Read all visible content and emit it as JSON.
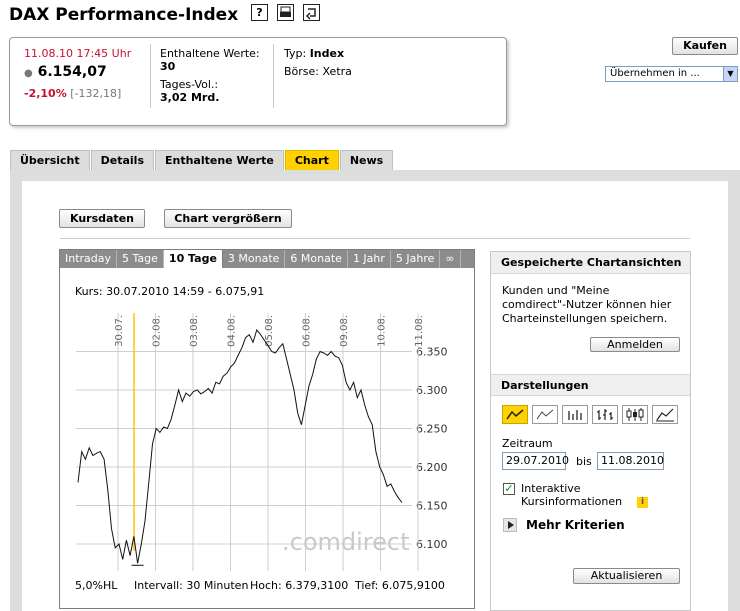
{
  "header": {
    "title": "DAX Performance-Index",
    "icons": [
      "help-icon",
      "print-icon",
      "refresh-icon"
    ]
  },
  "quote": {
    "datetime": "11.08.10   17:45 Uhr",
    "price": "6.154,07",
    "change_pct": "-2,10%",
    "change_abs": "[-132,18]",
    "constituents_label": "Enthaltene Werte:",
    "constituents_value": "30",
    "volume_label": "Tages-Vol.:",
    "volume_value": "3,02 Mrd.",
    "type_label": "Typ:",
    "type_value": "Index",
    "exchange_label": "Börse:",
    "exchange_value": "Xetra"
  },
  "actions": {
    "buy_label": "Kaufen",
    "take_over_select": "Übernehmen in ..."
  },
  "tabs": [
    {
      "label": "Übersicht",
      "active": false
    },
    {
      "label": "Details",
      "active": false
    },
    {
      "label": "Enthaltene Werte",
      "active": false
    },
    {
      "label": "Chart",
      "active": true
    },
    {
      "label": "News",
      "active": false
    }
  ],
  "toolbar": {
    "kursdaten_label": "Kursdaten",
    "enlarge_label": "Chart vergrößern"
  },
  "chart_tabs": [
    {
      "label": "Intraday",
      "active": false
    },
    {
      "label": "5 Tage",
      "active": false
    },
    {
      "label": "10 Tage",
      "active": true
    },
    {
      "label": "3 Monate",
      "active": false
    },
    {
      "label": "6 Monate",
      "active": false
    },
    {
      "label": "1 Jahr",
      "active": false
    },
    {
      "label": "5 Jahre",
      "active": false
    },
    {
      "label": "∞",
      "active": false
    }
  ],
  "chart_data": {
    "type": "line",
    "kurs_line": "Kurs: 30.07.2010 14:59 - 6.075,91",
    "date_labels": [
      "30.07.",
      "02.08.",
      "03.08.",
      "04.08.",
      "05.08.",
      "06.08.",
      "09.08.",
      "10.08.",
      "11.08."
    ],
    "y_ticks": [
      "6.350",
      "6.300",
      "6.250",
      "6.200",
      "6.150",
      "6.100"
    ],
    "ylim": [
      6065,
      6400
    ],
    "grid": true,
    "watermark": ".comdirect",
    "series": [
      {
        "values": [
          6180,
          6220,
          6210,
          6225,
          6215,
          6218,
          6220,
          6210,
          6170,
          6120,
          6095,
          6100,
          6080,
          6105,
          6085,
          6110,
          6075,
          6100,
          6130,
          6180,
          6230,
          6250,
          6245,
          6252,
          6250,
          6262,
          6280,
          6300,
          6285,
          6296,
          6292,
          6298,
          6300,
          6295,
          6298,
          6302,
          6296,
          6310,
          6308,
          6318,
          6322,
          6330,
          6335,
          6345,
          6355,
          6368,
          6372,
          6362,
          6378,
          6372,
          6365,
          6358,
          6350,
          6348,
          6355,
          6360,
          6340,
          6320,
          6300,
          6270,
          6255,
          6280,
          6305,
          6320,
          6340,
          6350,
          6348,
          6345,
          6350,
          6344,
          6342,
          6332,
          6310,
          6300,
          6310,
          6290,
          6300,
          6280,
          6265,
          6255,
          6220,
          6200,
          6190,
          6175,
          6178,
          6168,
          6160,
          6154
        ]
      }
    ],
    "footer_hl": "5,0%HL",
    "footer_interval": "Intervall: 30 Minuten",
    "footer_high": "Hoch: 6.379,3100",
    "footer_low": "Tief: 6.075,9100"
  },
  "sidebar": {
    "saved_title": "Gespeicherte Chartansichten",
    "saved_text": [
      "Kunden und \"Meine",
      "comdirect\"-Nutzer können hier",
      "Charteinstellungen speichern."
    ],
    "login_label": "Anmelden",
    "display_title": "Darstellungen",
    "chart_type_icons": [
      "line-chart-icon",
      "mountain-chart-icon",
      "ohlc-bar-icon",
      "hlc-bar-icon",
      "candlestick-icon",
      "area-chart-icon"
    ],
    "range_label": "Zeitraum",
    "date_from": "29.07.2010",
    "range_sep": "bis",
    "date_to": "11.08.2010",
    "interactive_label": [
      "Interaktive",
      "Kursinformationen"
    ],
    "interactive_checked": true,
    "more_label": "Mehr Kriterien",
    "update_label": "Aktualisieren"
  }
}
